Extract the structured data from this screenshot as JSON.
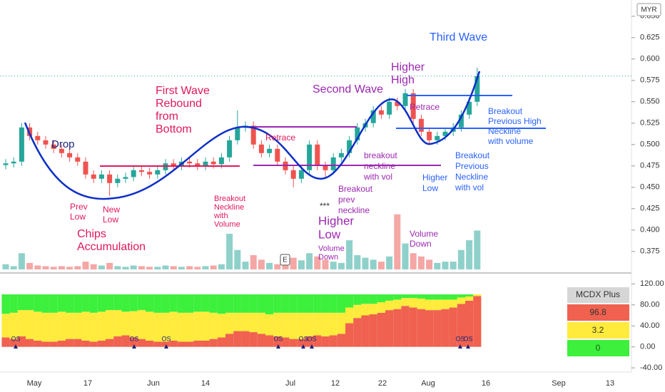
{
  "chart_data": [
    {
      "type": "candlestick",
      "currency": "MYR",
      "up_color": "#26a69a",
      "down_color": "#ef5350",
      "open": [
        0.476,
        0.478,
        0.48,
        0.52,
        0.51,
        0.505,
        0.5,
        0.495,
        0.49,
        0.485,
        0.48,
        0.465,
        0.46,
        0.465,
        0.455,
        0.46,
        0.462,
        0.47,
        0.468,
        0.465,
        0.47,
        0.478,
        0.475,
        0.48,
        0.478,
        0.475,
        0.48,
        0.477,
        0.485,
        0.505,
        0.52,
        0.522,
        0.5,
        0.49,
        0.495,
        0.48,
        0.47,
        0.46,
        0.47,
        0.5,
        0.475,
        0.47,
        0.485,
        0.49,
        0.505,
        0.52,
        0.525,
        0.54,
        0.535,
        0.55,
        0.545,
        0.56,
        0.53,
        0.515,
        0.505,
        0.51,
        0.515,
        0.52,
        0.535,
        0.55
      ],
      "high": [
        0.483,
        0.485,
        0.525,
        0.525,
        0.515,
        0.51,
        0.505,
        0.5,
        0.495,
        0.49,
        0.485,
        0.47,
        0.47,
        0.47,
        0.465,
        0.467,
        0.475,
        0.475,
        0.473,
        0.475,
        0.483,
        0.483,
        0.485,
        0.485,
        0.483,
        0.485,
        0.485,
        0.49,
        0.51,
        0.54,
        0.527,
        0.527,
        0.505,
        0.5,
        0.5,
        0.485,
        0.475,
        0.475,
        0.505,
        0.505,
        0.48,
        0.49,
        0.495,
        0.51,
        0.525,
        0.53,
        0.545,
        0.545,
        0.555,
        0.555,
        0.565,
        0.565,
        0.535,
        0.52,
        0.515,
        0.52,
        0.525,
        0.54,
        0.555,
        0.59
      ],
      "low": [
        0.471,
        0.473,
        0.475,
        0.505,
        0.5,
        0.495,
        0.49,
        0.485,
        0.48,
        0.475,
        0.46,
        0.455,
        0.455,
        0.44,
        0.45,
        0.455,
        0.457,
        0.463,
        0.46,
        0.46,
        0.465,
        0.47,
        0.47,
        0.473,
        0.47,
        0.47,
        0.472,
        0.472,
        0.48,
        0.5,
        0.515,
        0.495,
        0.485,
        0.485,
        0.475,
        0.465,
        0.45,
        0.455,
        0.465,
        0.47,
        0.46,
        0.465,
        0.48,
        0.485,
        0.5,
        0.515,
        0.52,
        0.53,
        0.53,
        0.54,
        0.54,
        0.525,
        0.51,
        0.5,
        0.5,
        0.505,
        0.51,
        0.515,
        0.53,
        0.545
      ],
      "close": [
        0.478,
        0.48,
        0.52,
        0.51,
        0.505,
        0.5,
        0.495,
        0.49,
        0.485,
        0.48,
        0.465,
        0.46,
        0.465,
        0.455,
        0.46,
        0.462,
        0.47,
        0.468,
        0.465,
        0.47,
        0.478,
        0.475,
        0.48,
        0.478,
        0.475,
        0.48,
        0.477,
        0.485,
        0.505,
        0.52,
        0.522,
        0.5,
        0.49,
        0.495,
        0.48,
        0.47,
        0.46,
        0.47,
        0.5,
        0.475,
        0.47,
        0.485,
        0.49,
        0.505,
        0.52,
        0.525,
        0.54,
        0.535,
        0.55,
        0.545,
        0.56,
        0.53,
        0.515,
        0.505,
        0.51,
        0.515,
        0.52,
        0.535,
        0.55,
        0.58
      ],
      "ylim": [
        0.354,
        0.669
      ],
      "yticks": [
        {
          "value": 0.65,
          "label": "0.650"
        },
        {
          "value": 0.625,
          "label": "0.625"
        },
        {
          "value": 0.6,
          "label": "0.600"
        },
        {
          "value": 0.575,
          "label": "0.575"
        },
        {
          "value": 0.55,
          "label": "0.550"
        },
        {
          "value": 0.525,
          "label": "0.525"
        },
        {
          "value": 0.5,
          "label": "0.500"
        },
        {
          "value": 0.475,
          "label": "0.475"
        },
        {
          "value": 0.45,
          "label": "0.450"
        },
        {
          "value": 0.425,
          "label": "0.425"
        },
        {
          "value": 0.4,
          "label": "0.400"
        },
        {
          "value": 0.375,
          "label": "0.375"
        }
      ],
      "x_labels": [
        "May",
        "17",
        "Jun",
        "14",
        "Jul",
        "12",
        "22",
        "Aug",
        "16",
        "Sep",
        "13"
      ]
    },
    {
      "type": "volume",
      "values": [
        8,
        5,
        25,
        10,
        6,
        5,
        4,
        5,
        4,
        5,
        12,
        8,
        6,
        10,
        5,
        4,
        6,
        5,
        4,
        4,
        6,
        5,
        4,
        5,
        4,
        5,
        6,
        8,
        55,
        30,
        12,
        22,
        15,
        10,
        8,
        12,
        18,
        14,
        25,
        20,
        15,
        12,
        10,
        45,
        22,
        18,
        15,
        12,
        20,
        85,
        40,
        25,
        20,
        15,
        10,
        12,
        12,
        30,
        45,
        60
      ],
      "ylim": [
        0,
        110
      ]
    },
    {
      "type": "stacked_bar",
      "title": "MCDX Plus",
      "series": [
        {
          "color": "#f0614f",
          "values": [
            18,
            15,
            20,
            15,
            12,
            10,
            10,
            12,
            15,
            15,
            12,
            10,
            12,
            15,
            20,
            22,
            18,
            15,
            12,
            10,
            10,
            12,
            10,
            10,
            12,
            12,
            15,
            18,
            25,
            30,
            30,
            28,
            25,
            22,
            20,
            18,
            15,
            15,
            20,
            22,
            20,
            22,
            25,
            45,
            55,
            60,
            62,
            65,
            70,
            72,
            78,
            75,
            72,
            70,
            70,
            72,
            75,
            82,
            88,
            96.8
          ]
        },
        {
          "color": "#ffeb3b",
          "values": [
            45,
            50,
            50,
            55,
            55,
            55,
            55,
            55,
            50,
            50,
            55,
            55,
            55,
            55,
            50,
            45,
            50,
            55,
            55,
            55,
            55,
            55,
            55,
            55,
            55,
            55,
            50,
            45,
            40,
            35,
            35,
            37,
            40,
            40,
            45,
            47,
            50,
            50,
            45,
            43,
            45,
            43,
            40,
            30,
            25,
            22,
            20,
            20,
            18,
            18,
            15,
            18,
            20,
            20,
            20,
            18,
            15,
            12,
            8,
            3.2
          ]
        },
        {
          "color": "#3cf03c",
          "values": [
            37,
            35,
            30,
            30,
            33,
            35,
            35,
            33,
            35,
            35,
            33,
            35,
            33,
            30,
            30,
            33,
            32,
            30,
            33,
            35,
            35,
            33,
            35,
            35,
            33,
            33,
            35,
            37,
            35,
            35,
            35,
            35,
            35,
            38,
            35,
            35,
            35,
            35,
            35,
            35,
            35,
            35,
            35,
            25,
            20,
            18,
            18,
            15,
            12,
            10,
            7,
            7,
            8,
            10,
            10,
            10,
            10,
            6,
            4,
            0
          ]
        }
      ],
      "ylim": [
        -48,
        134
      ],
      "yticks": [
        {
          "value": 120,
          "label": "120.00"
        },
        {
          "value": 80,
          "label": "80.00"
        },
        {
          "value": 40,
          "label": "40.00"
        },
        {
          "value": 0,
          "label": "0.00"
        },
        {
          "value": -40,
          "label": "-40.00"
        }
      ],
      "os_labels": [
        "OS",
        "OS",
        "OS",
        "OS",
        "OS",
        "OS",
        "OS",
        "OS"
      ]
    }
  ],
  "badge": "E",
  "annotations": [
    {
      "lines": [
        "Drop"
      ],
      "color": "#1a237e"
    },
    {
      "lines": [
        "Prev",
        "Low"
      ],
      "color": "#e0185a"
    },
    {
      "lines": [
        "New",
        "Low"
      ],
      "color": "#e0185a"
    },
    {
      "lines": [
        "Chips",
        "Accumulation"
      ],
      "color": "#e0185a"
    },
    {
      "lines": [
        "First Wave",
        "Rebound",
        "from",
        "Bottom"
      ],
      "color": "#e0185a"
    },
    {
      "lines": [
        "Breakout",
        "Neckline",
        "with",
        "Volume"
      ],
      "color": "#e0185a"
    },
    {
      "lines": [
        "Retrace"
      ],
      "color": "#e0185a"
    },
    {
      "lines": [
        "Second Wave"
      ],
      "color": "#9c27b0"
    },
    {
      "lines": [
        "Higher",
        "High"
      ],
      "color": "#9c27b0"
    },
    {
      "lines": [
        "Third Wave"
      ],
      "color": "#2962ff"
    },
    {
      "lines": [
        "***"
      ],
      "color": "#333333"
    },
    {
      "lines": [
        "Higher",
        "Low"
      ],
      "color": "#9c27b0"
    },
    {
      "lines": [
        "Volume",
        "Down"
      ],
      "color": "#9c27b0"
    },
    {
      "lines": [
        "Breakout",
        "prev",
        "neckline"
      ],
      "color": "#9c27b0"
    },
    {
      "lines": [
        "breakout",
        "neckline",
        "with vol"
      ],
      "color": "#9c27b0"
    },
    {
      "lines": [
        "Retrace"
      ],
      "color": "#9c27b0"
    },
    {
      "lines": [
        "Volume",
        "Down"
      ],
      "color": "#9c27b0"
    },
    {
      "lines": [
        "Higher",
        "Low"
      ],
      "color": "#2962ff"
    },
    {
      "lines": [
        "Breakout",
        "Previous",
        "Neckline",
        "with vol"
      ],
      "color": "#2962ff"
    },
    {
      "lines": [
        "Breakout",
        "Previous High",
        "Neckline",
        "with volume"
      ],
      "color": "#2962ff"
    }
  ]
}
